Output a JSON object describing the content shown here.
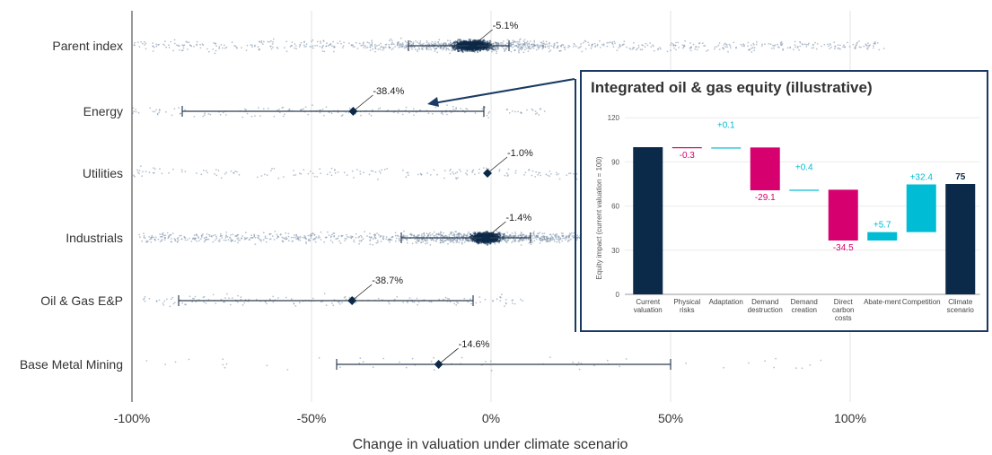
{
  "chart_data": [
    {
      "type": "scatter",
      "title": "",
      "xlabel": "Change in valuation under climate scenario",
      "xlim": [
        -100,
        140
      ],
      "x_ticks": [
        {
          "value": -100,
          "label": "-100%"
        },
        {
          "value": -50,
          "label": "-50%"
        },
        {
          "value": 0,
          "label": "0%"
        },
        {
          "value": 50,
          "label": "50%"
        },
        {
          "value": 100,
          "label": "100%"
        }
      ],
      "grid": true,
      "point_color": "#7a8fa8",
      "median_color": "#0b2a4a",
      "categories": [
        {
          "name": "Parent index",
          "median": -5.1,
          "median_label": "-5.1%",
          "whisker": [
            -23,
            5
          ],
          "spread": [
            -100,
            110
          ],
          "density": "high",
          "cluster_width": 8
        },
        {
          "name": "Energy",
          "median": -38.4,
          "median_label": "-38.4%",
          "whisker": [
            -86,
            -2
          ],
          "spread": [
            -100,
            15
          ],
          "density": "low",
          "cluster_width": 0
        },
        {
          "name": "Utilities",
          "median": -1.0,
          "median_label": "-1.0%",
          "whisker": null,
          "spread": [
            -100,
            25
          ],
          "density": "low",
          "cluster_width": 0
        },
        {
          "name": "Industrials",
          "median": -1.4,
          "median_label": "-1.4%",
          "whisker": [
            -25,
            11
          ],
          "spread": [
            -98,
            25
          ],
          "density": "high",
          "cluster_width": 6
        },
        {
          "name": "Oil & Gas E&P",
          "median": -38.7,
          "median_label": "-38.7%",
          "whisker": [
            -87,
            -5
          ],
          "spread": [
            -98,
            10
          ],
          "density": "low",
          "cluster_width": 0
        },
        {
          "name": "Base Metal Mining",
          "median": -14.6,
          "median_label": "-14.6%",
          "whisker": [
            -43,
            50
          ],
          "spread": [
            -98,
            95
          ],
          "density": "sparse",
          "cluster_width": 0
        }
      ]
    },
    {
      "type": "bar",
      "subtype": "waterfall",
      "title": "Integrated oil & gas equity (illustrative)",
      "ylabel": "Equity impact (current valuation = 100)",
      "ylim": [
        0,
        120
      ],
      "y_ticks": [
        0,
        30,
        60,
        90,
        120
      ],
      "colors": {
        "total": "#0b2a4a",
        "negative": "#d6006e",
        "positive": "#00bcd4"
      },
      "steps": [
        {
          "label": "Current valuation",
          "value": 100,
          "kind": "total",
          "value_label": ""
        },
        {
          "label": "Physical risks",
          "value": -0.3,
          "kind": "delta",
          "value_label": "-0.3"
        },
        {
          "label": "Adaptation",
          "value": 0.1,
          "kind": "delta",
          "value_label": "+0.1"
        },
        {
          "label": "Demand destruction",
          "value": -29.1,
          "kind": "delta",
          "value_label": "-29.1"
        },
        {
          "label": "Demand creation",
          "value": 0.4,
          "kind": "delta",
          "value_label": "+0.4"
        },
        {
          "label": "Direct carbon costs",
          "value": -34.5,
          "kind": "delta",
          "value_label": "-34.5"
        },
        {
          "label": "Abate-ment",
          "value": 5.7,
          "kind": "delta",
          "value_label": "+5.7"
        },
        {
          "label": "Competition",
          "value": 32.4,
          "kind": "delta",
          "value_label": "+32.4"
        },
        {
          "label": "Climate scenario",
          "value": 75,
          "kind": "total",
          "value_label": "75"
        }
      ]
    }
  ]
}
